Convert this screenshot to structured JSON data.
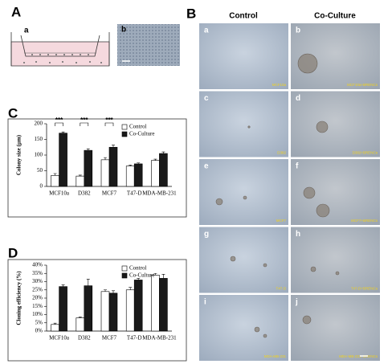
{
  "figure": {
    "panel_a": {
      "label": "A",
      "sub_a": "a",
      "sub_b": "b"
    },
    "panel_b": {
      "label": "B",
      "columns": [
        "Control",
        "Co-Culture"
      ],
      "rows": [
        {
          "left_letter": "a",
          "left_caption": "MCF10a",
          "right_letter": "b",
          "right_caption": "MCF10a+BRENCs"
        },
        {
          "left_letter": "c",
          "left_caption": "D382",
          "right_letter": "d",
          "right_caption": "D382+BRENCs"
        },
        {
          "left_letter": "e",
          "left_caption": "MCF7",
          "right_letter": "f",
          "right_caption": "MCF7+BRENCs"
        },
        {
          "left_letter": "g",
          "left_caption": "T47-D",
          "right_letter": "h",
          "right_caption": "T47-D+BRENCs"
        },
        {
          "left_letter": "i",
          "left_caption": "MDA-MB-231",
          "right_letter": "j",
          "right_caption": "MDA-MB-231+BRENCs"
        }
      ]
    },
    "panel_c": {
      "label": "C"
    },
    "panel_d": {
      "label": "D"
    }
  },
  "chart_data": [
    {
      "type": "bar",
      "y_label": "Colony size (μm)",
      "categories": [
        "MCF10a",
        "D382",
        "MCF7",
        "T47-D",
        "MDA-MB-231"
      ],
      "series": [
        {
          "name": "Control",
          "color": "#ffffff",
          "values": [
            35,
            33,
            85,
            65,
            83
          ],
          "errors": [
            6,
            3,
            7,
            3,
            4
          ]
        },
        {
          "name": "Co-Culture",
          "color": "#1a1a1a",
          "values": [
            170,
            115,
            125,
            72,
            105
          ],
          "errors": [
            4,
            5,
            7,
            3,
            5
          ]
        }
      ],
      "significance": [
        "***",
        "***",
        "***",
        null,
        null
      ],
      "ylim": [
        0,
        200
      ],
      "yticks": [
        0,
        50,
        100,
        150,
        200
      ]
    },
    {
      "type": "bar",
      "y_label": "Cloning efficiency (%)",
      "categories": [
        "MCF10a",
        "D382",
        "MCF7",
        "T47-D",
        "MDA-MB-231"
      ],
      "series": [
        {
          "name": "Control",
          "color": "#ffffff",
          "values": [
            4,
            8,
            24,
            25,
            34
          ],
          "errors": [
            0.8,
            0.5,
            1,
            1.5,
            1
          ]
        },
        {
          "name": "Co-Culture",
          "color": "#1a1a1a",
          "values": [
            27,
            27.5,
            23,
            31,
            32
          ],
          "errors": [
            1,
            4,
            1.5,
            1,
            2.5
          ]
        }
      ],
      "ylim": [
        0,
        40
      ],
      "yticks": [
        {
          "value": 0,
          "label": "0%"
        },
        {
          "value": 5,
          "label": "5%"
        },
        {
          "value": 10,
          "label": "10%"
        },
        {
          "value": 15,
          "label": "15%"
        },
        {
          "value": 20,
          "label": "20%"
        },
        {
          "value": 25,
          "label": "25%"
        },
        {
          "value": 30,
          "label": "30%"
        },
        {
          "value": 35,
          "label": "35%"
        },
        {
          "value": 40,
          "label": "40%"
        }
      ]
    }
  ]
}
